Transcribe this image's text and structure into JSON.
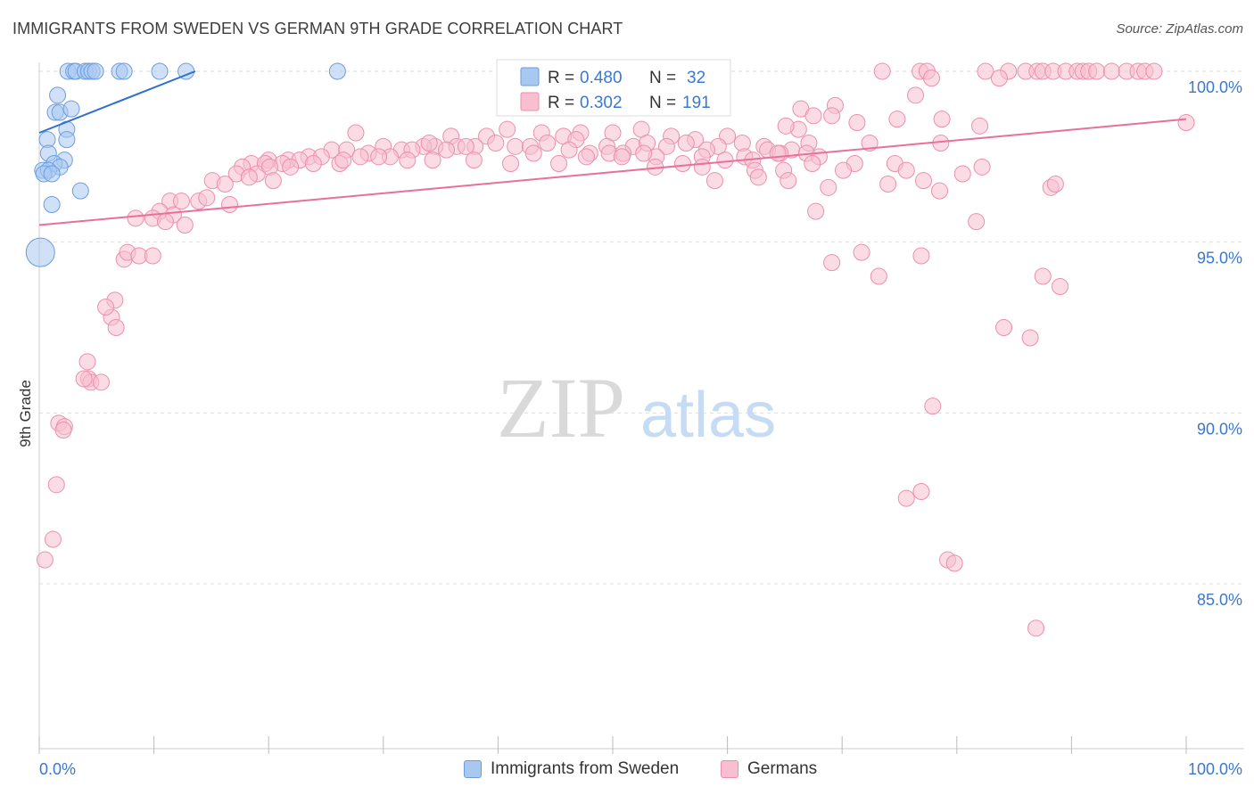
{
  "header": {
    "title": "IMMIGRANTS FROM SWEDEN VS GERMAN 9TH GRADE CORRELATION CHART",
    "source": "Source: ZipAtlas.com"
  },
  "watermark": {
    "zip": "ZIP",
    "atlas": "atlas"
  },
  "legend": {
    "r_label": "R =",
    "n_label": "N =",
    "items": [
      {
        "name": "Immigrants from Sweden",
        "r": "0.480",
        "n": "32"
      },
      {
        "name": "Germans",
        "r": "0.302",
        "n": "191"
      }
    ]
  },
  "chart_data": {
    "type": "scatter",
    "title": "IMMIGRANTS FROM SWEDEN VS GERMAN 9TH GRADE CORRELATION CHART",
    "xlabel": "",
    "ylabel": "9th Grade",
    "xlim": [
      0,
      100
    ],
    "ylim": [
      80.5,
      100.8
    ],
    "x_tick_labels": [
      "0.0%",
      "100.0%"
    ],
    "y_ticks": [
      {
        "value": 100.0,
        "label": "100.0%"
      },
      {
        "value": 95.0,
        "label": "95.0%"
      },
      {
        "value": 90.0,
        "label": "90.0%"
      },
      {
        "value": 85.0,
        "label": "85.0%"
      }
    ],
    "colors": {
      "sweden_fill": "#a9c8f0",
      "sweden_stroke": "#6a9de0",
      "sweden_line": "#2e6fcf",
      "germans_fill": "#f7bfd0",
      "germans_stroke": "#ec8fad",
      "germans_line": "#e8709a",
      "axis_text": "#3b78d0"
    },
    "series": [
      {
        "name": "Immigrants from Sweden",
        "trend": {
          "x1": 0,
          "y1": 98.2,
          "x2": 13.6,
          "y2": 100.0
        },
        "points": [
          [
            2.5,
            100
          ],
          [
            3.0,
            100
          ],
          [
            3.2,
            100
          ],
          [
            4.0,
            100
          ],
          [
            4.3,
            100
          ],
          [
            4.6,
            100
          ],
          [
            4.9,
            100
          ],
          [
            7.0,
            100
          ],
          [
            7.4,
            100
          ],
          [
            10.5,
            100
          ],
          [
            12.8,
            100
          ],
          [
            26.0,
            100
          ],
          [
            1.6,
            99.3
          ],
          [
            1.4,
            98.8
          ],
          [
            1.8,
            98.8
          ],
          [
            2.8,
            98.9
          ],
          [
            2.4,
            98.3
          ],
          [
            0.7,
            98.0
          ],
          [
            2.4,
            98.0
          ],
          [
            0.8,
            97.6
          ],
          [
            2.2,
            97.4
          ],
          [
            1.3,
            97.3
          ],
          [
            1.8,
            97.2
          ],
          [
            0.3,
            97.1
          ],
          [
            0.8,
            97.1
          ],
          [
            0.4,
            97.0
          ],
          [
            1.1,
            97.0
          ],
          [
            3.6,
            96.5
          ],
          [
            1.1,
            96.1
          ],
          [
            0.1,
            94.7,
            "L"
          ]
        ]
      },
      {
        "name": "Germans",
        "trend": {
          "x1": 0,
          "y1": 95.5,
          "x2": 100,
          "y2": 98.6
        },
        "points": [
          [
            73.5,
            100
          ],
          [
            76.8,
            100
          ],
          [
            77.4,
            100
          ],
          [
            82.5,
            100
          ],
          [
            84.5,
            100
          ],
          [
            86.0,
            100
          ],
          [
            87.0,
            100
          ],
          [
            87.5,
            100
          ],
          [
            88.4,
            100
          ],
          [
            89.5,
            100
          ],
          [
            90.5,
            100
          ],
          [
            91.0,
            100
          ],
          [
            91.5,
            100
          ],
          [
            92.2,
            100
          ],
          [
            93.5,
            100
          ],
          [
            94.8,
            100
          ],
          [
            95.8,
            100
          ],
          [
            96.4,
            100
          ],
          [
            97.2,
            100
          ],
          [
            77.8,
            99.8
          ],
          [
            83.7,
            99.8
          ],
          [
            76.4,
            99.3
          ],
          [
            69.4,
            99.0
          ],
          [
            66.4,
            98.9
          ],
          [
            67.5,
            98.7
          ],
          [
            69.1,
            98.7
          ],
          [
            71.3,
            98.5
          ],
          [
            74.8,
            98.6
          ],
          [
            78.7,
            98.6
          ],
          [
            82.0,
            98.4
          ],
          [
            66.2,
            98.3
          ],
          [
            65.1,
            98.4
          ],
          [
            40.8,
            98.3
          ],
          [
            50.0,
            98.2
          ],
          [
            52.5,
            98.3
          ],
          [
            43.8,
            98.2
          ],
          [
            39.0,
            98.1
          ],
          [
            47.2,
            98.2
          ],
          [
            55.1,
            98.1
          ],
          [
            45.7,
            98.1
          ],
          [
            57.2,
            98.0
          ],
          [
            60.0,
            98.1
          ],
          [
            35.9,
            98.1
          ],
          [
            27.6,
            98.2
          ],
          [
            30.0,
            97.8
          ],
          [
            34.5,
            97.8
          ],
          [
            38.0,
            97.8
          ],
          [
            41.5,
            97.8
          ],
          [
            46.8,
            98.0
          ],
          [
            49.5,
            97.8
          ],
          [
            51.8,
            97.8
          ],
          [
            53.0,
            97.9
          ],
          [
            54.7,
            97.8
          ],
          [
            56.4,
            97.9
          ],
          [
            59.2,
            97.8
          ],
          [
            61.3,
            97.9
          ],
          [
            63.2,
            97.8
          ],
          [
            65.6,
            97.7
          ],
          [
            67.1,
            97.9
          ],
          [
            72.4,
            97.9
          ],
          [
            78.6,
            97.9
          ],
          [
            18.5,
            97.3
          ],
          [
            20.0,
            97.4
          ],
          [
            21.7,
            97.4
          ],
          [
            23.5,
            97.5
          ],
          [
            25.5,
            97.7
          ],
          [
            26.8,
            97.7
          ],
          [
            28.7,
            97.6
          ],
          [
            31.6,
            97.7
          ],
          [
            33.5,
            97.8
          ],
          [
            36.4,
            97.8
          ],
          [
            42.8,
            97.8
          ],
          [
            44.3,
            97.9
          ],
          [
            48.0,
            97.6
          ],
          [
            49.7,
            97.6
          ],
          [
            53.8,
            97.5
          ],
          [
            58.2,
            97.7
          ],
          [
            61.5,
            97.5
          ],
          [
            63.5,
            97.7
          ],
          [
            64.6,
            97.6
          ],
          [
            17.7,
            97.2
          ],
          [
            19.7,
            97.3
          ],
          [
            21.2,
            97.3
          ],
          [
            22.7,
            97.4
          ],
          [
            24.6,
            97.5
          ],
          [
            26.2,
            97.3
          ],
          [
            28.0,
            97.5
          ],
          [
            30.6,
            97.5
          ],
          [
            32.5,
            97.7
          ],
          [
            34.0,
            97.9
          ],
          [
            35.5,
            97.7
          ],
          [
            37.2,
            97.8
          ],
          [
            39.8,
            97.9
          ],
          [
            43.1,
            97.6
          ],
          [
            46.2,
            97.7
          ],
          [
            50.9,
            97.6
          ],
          [
            52.7,
            97.6
          ],
          [
            57.8,
            97.5
          ],
          [
            59.8,
            97.4
          ],
          [
            62.2,
            97.4
          ],
          [
            64.4,
            97.6
          ],
          [
            66.9,
            97.6
          ],
          [
            68.0,
            97.5
          ],
          [
            71.1,
            97.3
          ],
          [
            74.6,
            97.3
          ],
          [
            15.1,
            96.8
          ],
          [
            17.2,
            97.0
          ],
          [
            19.0,
            97.0
          ],
          [
            20.1,
            97.2
          ],
          [
            21.9,
            97.2
          ],
          [
            23.9,
            97.3
          ],
          [
            26.5,
            97.4
          ],
          [
            29.6,
            97.5
          ],
          [
            32.1,
            97.4
          ],
          [
            34.3,
            97.4
          ],
          [
            37.9,
            97.4
          ],
          [
            41.1,
            97.3
          ],
          [
            45.3,
            97.3
          ],
          [
            47.7,
            97.5
          ],
          [
            50.8,
            97.5
          ],
          [
            53.7,
            97.2
          ],
          [
            56.1,
            97.3
          ],
          [
            57.8,
            97.2
          ],
          [
            62.4,
            97.1
          ],
          [
            64.9,
            97.1
          ],
          [
            67.4,
            97.3
          ],
          [
            70.1,
            97.1
          ],
          [
            75.6,
            97.1
          ],
          [
            16.2,
            96.7
          ],
          [
            18.3,
            96.9
          ],
          [
            20.4,
            96.8
          ],
          [
            58.9,
            96.8
          ],
          [
            62.7,
            96.9
          ],
          [
            65.3,
            96.8
          ],
          [
            68.8,
            96.6
          ],
          [
            74.0,
            96.7
          ],
          [
            77.1,
            96.8
          ],
          [
            80.5,
            97.0
          ],
          [
            82.2,
            97.2
          ],
          [
            13.9,
            96.2
          ],
          [
            16.6,
            96.1
          ],
          [
            11.4,
            96.2
          ],
          [
            14.6,
            96.3
          ],
          [
            12.4,
            96.2
          ],
          [
            88.2,
            96.6
          ],
          [
            88.6,
            96.7
          ],
          [
            78.5,
            96.5
          ],
          [
            10.5,
            95.9
          ],
          [
            11.7,
            95.8
          ],
          [
            9.9,
            95.7
          ],
          [
            8.4,
            95.7
          ],
          [
            12.7,
            95.5
          ],
          [
            11.0,
            95.6
          ],
          [
            67.7,
            95.9
          ],
          [
            81.7,
            95.6
          ],
          [
            7.4,
            94.5
          ],
          [
            7.7,
            94.7
          ],
          [
            8.7,
            94.6
          ],
          [
            9.9,
            94.6
          ],
          [
            71.7,
            94.7
          ],
          [
            73.2,
            94.0
          ],
          [
            69.1,
            94.4
          ],
          [
            76.9,
            94.6
          ],
          [
            87.5,
            94.0
          ],
          [
            89.0,
            93.7
          ],
          [
            6.6,
            93.3
          ],
          [
            6.3,
            92.8
          ],
          [
            5.8,
            93.1
          ],
          [
            6.7,
            92.5
          ],
          [
            84.1,
            92.5
          ],
          [
            86.4,
            92.2
          ],
          [
            4.2,
            91.5
          ],
          [
            4.3,
            91.0
          ],
          [
            4.5,
            90.9
          ],
          [
            5.4,
            90.9
          ],
          [
            3.9,
            91.0
          ],
          [
            77.9,
            90.2
          ],
          [
            1.7,
            89.7
          ],
          [
            2.2,
            89.6
          ],
          [
            2.1,
            89.5
          ],
          [
            1.5,
            87.9
          ],
          [
            75.6,
            87.5
          ],
          [
            76.9,
            87.7
          ],
          [
            1.2,
            86.3
          ],
          [
            0.5,
            85.7
          ],
          [
            79.2,
            85.7
          ],
          [
            79.8,
            85.6
          ],
          [
            86.9,
            83.7
          ],
          [
            100.0,
            98.5
          ]
        ]
      }
    ]
  }
}
